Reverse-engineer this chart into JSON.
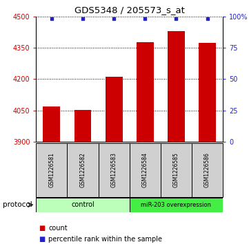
{
  "title": "GDS5348 / 205573_s_at",
  "samples": [
    "GSM1226581",
    "GSM1226582",
    "GSM1226583",
    "GSM1226584",
    "GSM1226585",
    "GSM1226586"
  ],
  "counts": [
    4068,
    4052,
    4210,
    4375,
    4430,
    4373
  ],
  "percentile_ranks": [
    98,
    98,
    98,
    98,
    98,
    98
  ],
  "ylim_left": [
    3900,
    4500
  ],
  "yticks_left": [
    3900,
    4050,
    4200,
    4350,
    4500
  ],
  "ylim_right": [
    0,
    100
  ],
  "yticks_right": [
    0,
    25,
    50,
    75,
    100
  ],
  "bar_color": "#cc0000",
  "dot_color": "#2222cc",
  "control_color": "#bbffbb",
  "mir_color": "#44ee44",
  "gray_color": "#d0d0d0",
  "protocol_label": "protocol",
  "legend_count_label": "count",
  "legend_pct_label": "percentile rank within the sample",
  "title_fontsize": 9.5,
  "tick_fontsize": 7,
  "sample_fontsize": 5.5,
  "proto_fontsize": 7,
  "legend_fontsize": 7
}
